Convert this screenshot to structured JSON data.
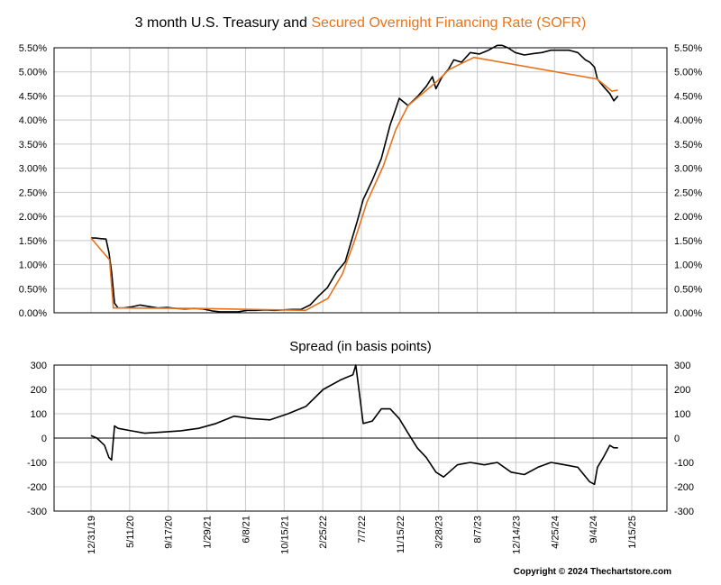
{
  "colors": {
    "treasury": "#000000",
    "sofr": "#e8731c",
    "grid": "#c8c8c8"
  },
  "chart_data": [
    {
      "type": "line",
      "title_part1": "3 month U.S. Treasury and ",
      "title_part2": "Secured Overnight Financing Rate (SOFR)",
      "ylim": [
        0,
        5.5
      ],
      "y_ticks": [
        "0.00%",
        "0.50%",
        "1.00%",
        "1.50%",
        "2.00%",
        "2.50%",
        "3.00%",
        "3.50%",
        "4.00%",
        "4.50%",
        "5.00%",
        "5.50%"
      ],
      "x_ticks": [
        "12/31/19",
        "5/11/20",
        "9/17/20",
        "1/29/21",
        "6/8/21",
        "10/15/21",
        "2/25/22",
        "7/7/22",
        "11/15/22",
        "3/28/23",
        "8/7/23",
        "12/14/23",
        "4/25/24",
        "9/4/24",
        "1/15/25"
      ],
      "grid": true,
      "series": [
        {
          "color": "#000000",
          "x": [
            "2019-12-31",
            "2020-01-15",
            "2020-02-01",
            "2020-02-20",
            "2020-03-01",
            "2020-03-10",
            "2020-03-20",
            "2020-04-01",
            "2020-04-20",
            "2020-05-15",
            "2020-06-15",
            "2020-07-15",
            "2020-08-15",
            "2020-09-15",
            "2020-10-15",
            "2020-11-15",
            "2020-12-15",
            "2021-01-15",
            "2021-02-15",
            "2021-03-15",
            "2021-04-15",
            "2021-05-15",
            "2021-06-15",
            "2021-07-15",
            "2021-08-15",
            "2021-09-15",
            "2021-10-15",
            "2021-11-15",
            "2021-12-15",
            "2022-01-15",
            "2022-02-15",
            "2022-03-15",
            "2022-04-15",
            "2022-05-15",
            "2022-06-10",
            "2022-06-25",
            "2022-07-15",
            "2022-08-15",
            "2022-09-15",
            "2022-10-15",
            "2022-11-01",
            "2022-11-15",
            "2022-12-15",
            "2023-01-15",
            "2023-02-15",
            "2023-03-08",
            "2023-03-20",
            "2023-04-10",
            "2023-05-01",
            "2023-05-20",
            "2023-06-15",
            "2023-07-15",
            "2023-08-15",
            "2023-09-15",
            "2023-10-15",
            "2023-10-31",
            "2023-11-20",
            "2023-12-15",
            "2024-01-15",
            "2024-02-15",
            "2024-03-15",
            "2024-04-15",
            "2024-05-15",
            "2024-06-15",
            "2024-07-15",
            "2024-08-10",
            "2024-08-25",
            "2024-09-10",
            "2024-09-20",
            "2024-10-10",
            "2024-11-01",
            "2024-11-15",
            "2024-11-29"
          ],
          "values": [
            1.55,
            1.55,
            1.54,
            1.53,
            1.25,
            0.85,
            0.2,
            0.1,
            0.1,
            0.12,
            0.16,
            0.13,
            0.1,
            0.11,
            0.09,
            0.08,
            0.09,
            0.08,
            0.04,
            0.02,
            0.02,
            0.02,
            0.05,
            0.05,
            0.06,
            0.05,
            0.06,
            0.07,
            0.07,
            0.16,
            0.36,
            0.52,
            0.84,
            1.06,
            1.6,
            1.9,
            2.35,
            2.75,
            3.2,
            3.9,
            4.2,
            4.45,
            4.3,
            4.48,
            4.7,
            4.9,
            4.65,
            4.9,
            5.05,
            5.25,
            5.2,
            5.4,
            5.37,
            5.45,
            5.55,
            5.55,
            5.5,
            5.4,
            5.35,
            5.38,
            5.4,
            5.45,
            5.45,
            5.45,
            5.4,
            5.25,
            5.2,
            5.1,
            4.85,
            4.7,
            4.55,
            4.4,
            4.5
          ]
        },
        {
          "color": "#e8731c",
          "x": [
            "2019-12-31",
            "2020-03-03",
            "2020-03-16",
            "2020-12-31",
            "2021-12-31",
            "2022-03-17",
            "2022-05-05",
            "2022-06-16",
            "2022-07-28",
            "2022-09-22",
            "2022-11-03",
            "2022-12-15",
            "2023-02-02",
            "2023-03-23",
            "2023-05-04",
            "2023-07-27",
            "2024-09-19",
            "2024-11-08",
            "2024-11-29"
          ],
          "values": [
            1.55,
            1.1,
            0.1,
            0.09,
            0.05,
            0.3,
            0.8,
            1.5,
            2.3,
            3.05,
            3.8,
            4.3,
            4.55,
            4.8,
            5.05,
            5.3,
            4.85,
            4.6,
            4.62
          ]
        }
      ]
    },
    {
      "type": "line",
      "title": "Spread (in basis points)",
      "ylim": [
        -300,
        300
      ],
      "y_ticks": [
        "-300",
        "-200",
        "-100",
        "0",
        "100",
        "200",
        "300"
      ],
      "grid": true,
      "series": [
        {
          "color": "#000000",
          "x": [
            "2019-12-31",
            "2020-01-20",
            "2020-02-15",
            "2020-03-01",
            "2020-03-10",
            "2020-03-20",
            "2020-04-01",
            "2020-05-15",
            "2020-07-01",
            "2020-09-01",
            "2020-11-01",
            "2021-01-01",
            "2021-03-01",
            "2021-05-01",
            "2021-07-01",
            "2021-09-01",
            "2021-11-01",
            "2022-01-01",
            "2022-03-01",
            "2022-05-01",
            "2022-06-10",
            "2022-06-20",
            "2022-07-15",
            "2022-08-15",
            "2022-09-15",
            "2022-10-15",
            "2022-11-15",
            "2022-12-15",
            "2023-01-15",
            "2023-02-15",
            "2023-03-20",
            "2023-04-15",
            "2023-06-01",
            "2023-07-15",
            "2023-09-01",
            "2023-10-15",
            "2023-12-01",
            "2024-01-15",
            "2024-03-01",
            "2024-04-15",
            "2024-06-01",
            "2024-07-15",
            "2024-08-25",
            "2024-09-10",
            "2024-09-20",
            "2024-10-10",
            "2024-11-01",
            "2024-11-15",
            "2024-11-29"
          ],
          "values": [
            10,
            0,
            -30,
            -80,
            -90,
            50,
            40,
            30,
            20,
            25,
            30,
            40,
            60,
            90,
            80,
            75,
            100,
            130,
            200,
            240,
            260,
            300,
            60,
            70,
            120,
            120,
            80,
            20,
            -40,
            -80,
            -140,
            -160,
            -110,
            -100,
            -110,
            -100,
            -140,
            -150,
            -120,
            -100,
            -110,
            -120,
            -180,
            -190,
            -120,
            -80,
            -30,
            -40,
            -40
          ]
        }
      ]
    }
  ],
  "copyright": "Copyright © 2024 Thechartstore.com"
}
